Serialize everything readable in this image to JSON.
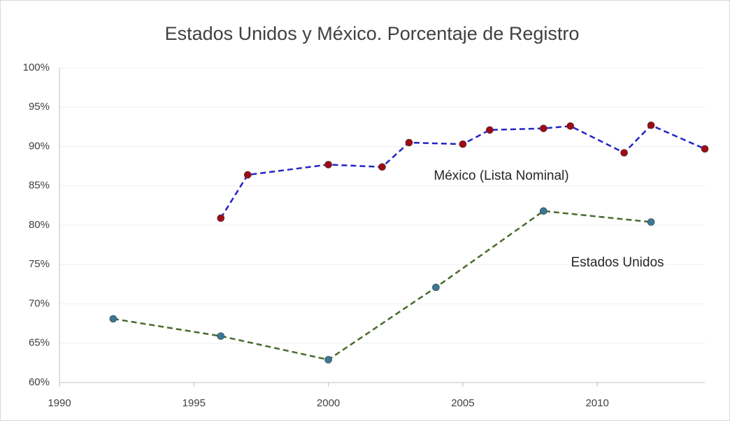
{
  "chart_data": {
    "type": "line",
    "title": "Estados Unidos y México. Porcentaje de Registro",
    "xlim": [
      1990,
      2014
    ],
    "xticks": [
      1990,
      1995,
      2000,
      2005,
      2010
    ],
    "ylim": [
      60,
      100
    ],
    "yticks": [
      {
        "value": 60,
        "label": "60%"
      },
      {
        "value": 65,
        "label": "65%"
      },
      {
        "value": 70,
        "label": "70%"
      },
      {
        "value": 75,
        "label": "75%"
      },
      {
        "value": 80,
        "label": "80%"
      },
      {
        "value": 85,
        "label": "85%"
      },
      {
        "value": 90,
        "label": "90%"
      },
      {
        "value": 95,
        "label": "95%"
      },
      {
        "value": 100,
        "label": "100%"
      }
    ],
    "grid": true,
    "series": [
      {
        "name": "México (Lista Nominal)",
        "color": "#2323c8",
        "marker_color": "#a00a14",
        "x": [
          1996,
          1997,
          2000,
          2002,
          2003,
          2005,
          2006,
          2008,
          2009,
          2011,
          2012,
          2014
        ],
        "values": [
          80.9,
          86.4,
          87.7,
          87.4,
          90.5,
          90.3,
          92.1,
          92.3,
          92.6,
          89.2,
          92.7,
          89.7
        ]
      },
      {
        "name": "Estados Unidos",
        "color": "#4a6b2c",
        "marker_color": "#3a7896",
        "x": [
          1992,
          1996,
          2000,
          2004,
          2008,
          2012
        ],
        "values": [
          68.1,
          65.9,
          62.9,
          72.1,
          81.8,
          80.4
        ]
      }
    ]
  }
}
